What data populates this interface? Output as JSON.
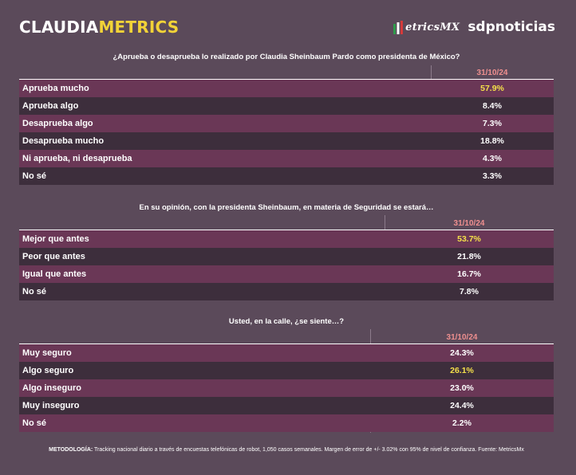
{
  "header": {
    "brand_part1": "CLAUDIA",
    "brand_part2": "METRICS",
    "metricsmx": "etricsMX",
    "sdp": "sdpnoticias",
    "colors": {
      "brand_yellow": "#f2d337",
      "background": "#5b4a5a"
    }
  },
  "sections": [
    {
      "question": "¿Aprueba o desaprueba lo realizado por Claudia Sheinbaum Pardo como presidenta de México?",
      "date": "31/10/24",
      "rows": [
        {
          "label": "Aprueba mucho",
          "value": "57.9%"
        },
        {
          "label": "Aprueba algo",
          "value": "8.4%"
        },
        {
          "label": "Desaprueba algo",
          "value": "7.3%"
        },
        {
          "label": "Desaprueba mucho",
          "value": "18.8%"
        },
        {
          "label": "Ni aprueba, ni desaprueba",
          "value": "4.3%"
        },
        {
          "label": "No sé",
          "value": "3.3%"
        }
      ]
    },
    {
      "question": "En su opinión, con la presidenta Sheinbaum, en materia de Seguridad se estará…",
      "date": "31/10/24",
      "rows": [
        {
          "label": "Mejor que antes",
          "value": "53.7%"
        },
        {
          "label": "Peor que antes",
          "value": "21.8%"
        },
        {
          "label": "Igual que antes",
          "value": "16.7%"
        },
        {
          "label": "No sé",
          "value": "7.8%"
        }
      ]
    },
    {
      "question": "Usted, en la calle, ¿se siente…?",
      "date": "31/10/24",
      "rows": [
        {
          "label": "Muy seguro",
          "value": "24.3%"
        },
        {
          "label": "Algo seguro",
          "value": "26.1%"
        },
        {
          "label": "Algo inseguro",
          "value": "23.0%"
        },
        {
          "label": "Muy inseguro",
          "value": "24.4%"
        },
        {
          "label": "No sé",
          "value": "2.2%"
        }
      ]
    }
  ],
  "footer": {
    "label": "METODOLOGÍA:",
    "text": "Tracking nacional diario a través de encuestas telefónicas de robot, 1,050 casos semanales. Margen de error de +/- 3.02% con 95% de nivel de confianza. Fuente: MetricsMx"
  }
}
